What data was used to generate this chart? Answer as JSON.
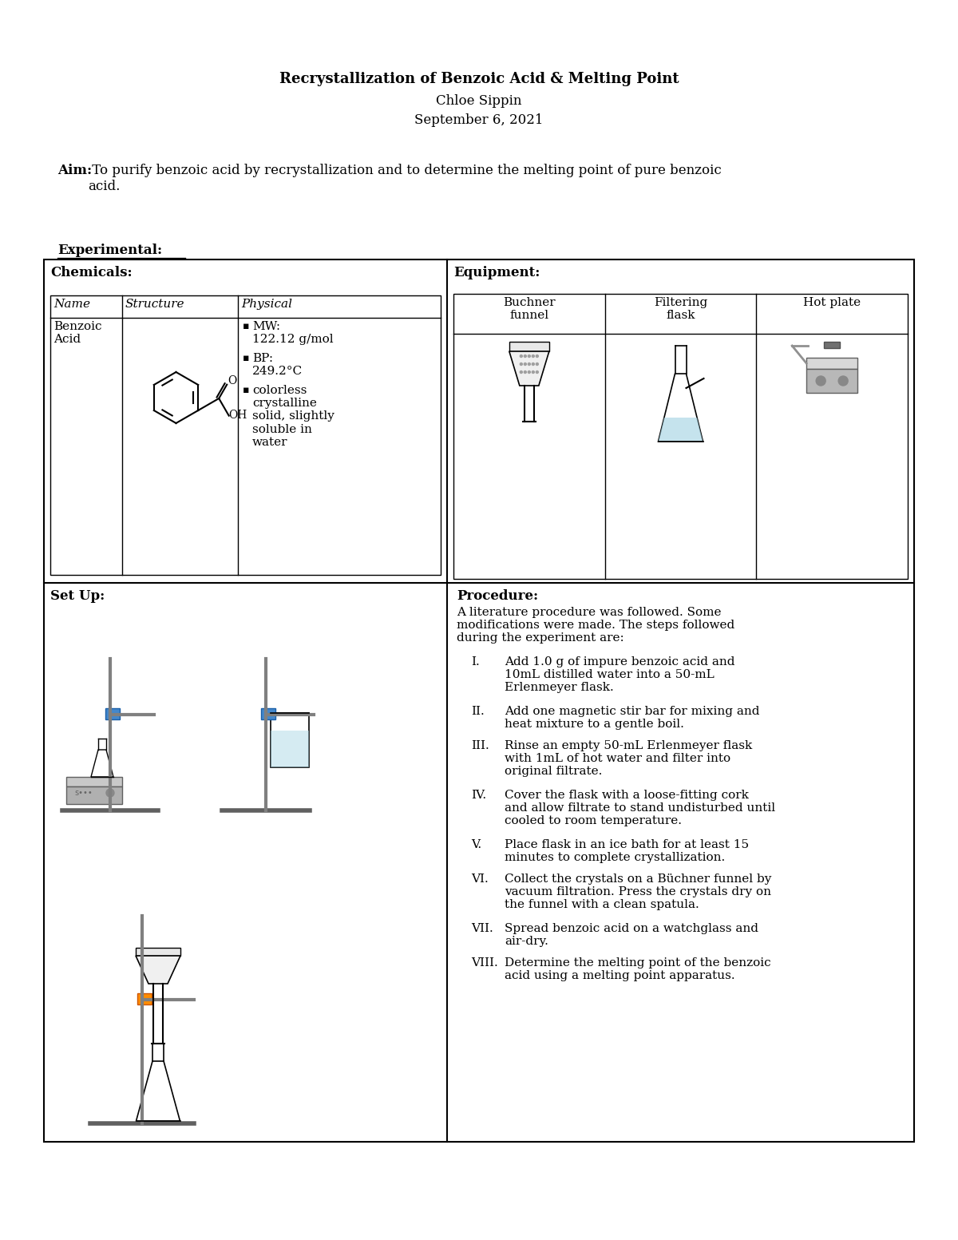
{
  "title_line1": "Recrystallization of Benzoic Acid & Melting Point",
  "title_line2": "Chloe Sippin",
  "title_line3": "September 6, 2021",
  "aim_label": "Aim:",
  "aim_text": " To purify benzoic acid by recrystallization and to determine the melting point of pure benzoic\nacid.",
  "experimental_label": "Experimental:",
  "chemicals_label": "Chemicals:",
  "equipment_label": "Equipment:",
  "chem_headers": [
    "Name",
    "Structure",
    "Physical"
  ],
  "chem_name": "Benzoic\nAcid",
  "physical_bullets": [
    "MW:\n122.12 g/mol",
    "BP:\n249.2°C",
    "colorless\ncrystalline\nsolid, slightly\nsoluble in\nwater"
  ],
  "equip_items": [
    "Buchner\nfunnel",
    "Filtering\nflask",
    "Hot plate"
  ],
  "setup_label": "Set Up:",
  "procedure_label": "Procedure:",
  "procedure_intro": "A literature procedure was followed. Some\nmodifications were made. The steps followed\nduring the experiment are:",
  "procedure_steps": [
    [
      "I.",
      "Add 1.0 g of impure benzoic acid and\n10mL distilled water into a 50-mL\nErlenmeyer flask."
    ],
    [
      "II.",
      "Add one magnetic stir bar for mixing and\nheat mixture to a gentle boil."
    ],
    [
      "III.",
      "Rinse an empty 50-mL Erlenmeyer flask\nwith 1mL of hot water and filter into\noriginal filtrate."
    ],
    [
      "IV.",
      "Cover the flask with a loose-fitting cork\nand allow filtrate to stand undisturbed until\ncooled to room temperature."
    ],
    [
      "V.",
      "Place flask in an ice bath for at least 15\nminutes to complete crystallization."
    ],
    [
      "VI.",
      "Collect the crystals on a Büchner funnel by\nvacuum filtration. Press the crystals dry on\nthe funnel with a clean spatula."
    ],
    [
      "VII.",
      "Spread benzoic acid on a watchglass and\nair-dry."
    ],
    [
      "VIII.",
      "Determine the melting point of the benzoic\nacid using a melting point apparatus."
    ]
  ],
  "bg_color": "#ffffff",
  "text_color": "#000000"
}
